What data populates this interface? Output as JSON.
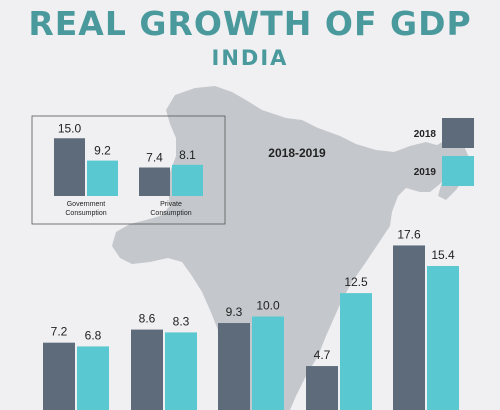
{
  "title": "REAL GROWTH OF GDP",
  "subtitle": "INDIA",
  "period_label": "2018-2019",
  "colors": {
    "series_2018": "#5d6b7a",
    "series_2019": "#5ac8d0",
    "accent": "#4a9a9d",
    "map": "#c4c7cc"
  },
  "chart_data": [
    {
      "type": "bar",
      "categories": [
        "Government Consumption",
        "Private Consumption"
      ],
      "series": [
        {
          "name": "2018",
          "values": [
            15.0,
            7.4
          ]
        },
        {
          "name": "2019",
          "values": [
            9.2,
            8.1
          ]
        }
      ]
    },
    {
      "type": "bar",
      "categories": [
        "",
        "",
        "",
        "",
        ""
      ],
      "series": [
        {
          "name": "2018",
          "values": [
            7.2,
            8.6,
            9.3,
            4.7,
            17.6
          ]
        },
        {
          "name": "2019",
          "values": [
            6.8,
            8.3,
            10.0,
            12.5,
            15.4
          ]
        }
      ],
      "legend": {
        "position": "right",
        "entries": [
          "2018",
          "2019"
        ]
      }
    }
  ]
}
